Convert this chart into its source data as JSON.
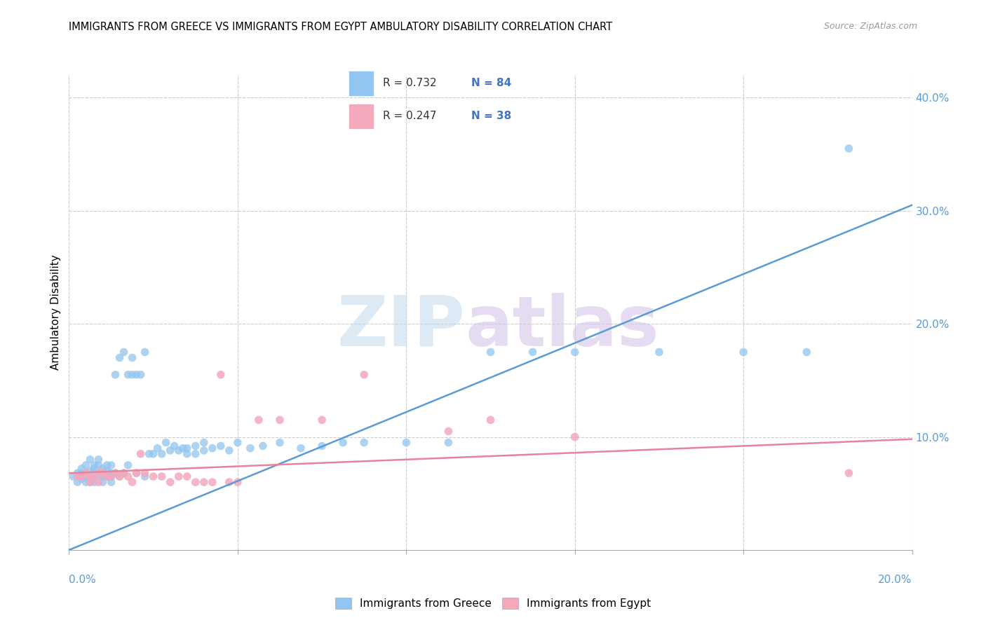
{
  "title": "IMMIGRANTS FROM GREECE VS IMMIGRANTS FROM EGYPT AMBULATORY DISABILITY CORRELATION CHART",
  "source": "Source: ZipAtlas.com",
  "ylabel": "Ambulatory Disability",
  "xlim": [
    0.0,
    0.2
  ],
  "ylim": [
    0.0,
    0.42
  ],
  "greece_R": 0.732,
  "greece_N": 84,
  "egypt_R": 0.247,
  "egypt_N": 38,
  "greece_color": "#92C5F0",
  "egypt_color": "#F4A8BC",
  "greece_line_color": "#5B9BD5",
  "egypt_line_color": "#E8839D",
  "N_color": "#4472C4",
  "R_color": "#333333",
  "background_color": "#FFFFFF",
  "greece_line_x0": 0.0,
  "greece_line_y0": 0.0,
  "greece_line_x1": 0.2,
  "greece_line_y1": 0.305,
  "egypt_line_x0": 0.0,
  "egypt_line_y0": 0.068,
  "egypt_line_x1": 0.2,
  "egypt_line_y1": 0.098,
  "greece_scatter_x": [
    0.001,
    0.002,
    0.002,
    0.003,
    0.003,
    0.003,
    0.004,
    0.004,
    0.004,
    0.004,
    0.005,
    0.005,
    0.005,
    0.005,
    0.006,
    0.006,
    0.006,
    0.006,
    0.006,
    0.007,
    0.007,
    0.007,
    0.007,
    0.008,
    0.008,
    0.008,
    0.008,
    0.009,
    0.009,
    0.009,
    0.01,
    0.01,
    0.01,
    0.01,
    0.011,
    0.011,
    0.012,
    0.012,
    0.013,
    0.013,
    0.014,
    0.014,
    0.015,
    0.015,
    0.016,
    0.016,
    0.017,
    0.018,
    0.019,
    0.02,
    0.021,
    0.022,
    0.023,
    0.024,
    0.025,
    0.026,
    0.027,
    0.028,
    0.03,
    0.032,
    0.034,
    0.036,
    0.038,
    0.04,
    0.043,
    0.046,
    0.05,
    0.055,
    0.06,
    0.065,
    0.07,
    0.08,
    0.09,
    0.1,
    0.11,
    0.12,
    0.14,
    0.16,
    0.175,
    0.185,
    0.03,
    0.028,
    0.032,
    0.018
  ],
  "greece_scatter_y": [
    0.065,
    0.06,
    0.068,
    0.063,
    0.068,
    0.072,
    0.065,
    0.068,
    0.075,
    0.06,
    0.065,
    0.07,
    0.08,
    0.06,
    0.068,
    0.072,
    0.065,
    0.075,
    0.06,
    0.068,
    0.075,
    0.065,
    0.08,
    0.068,
    0.072,
    0.065,
    0.06,
    0.07,
    0.065,
    0.075,
    0.068,
    0.075,
    0.065,
    0.06,
    0.155,
    0.068,
    0.17,
    0.065,
    0.175,
    0.068,
    0.155,
    0.075,
    0.155,
    0.17,
    0.155,
    0.068,
    0.155,
    0.065,
    0.085,
    0.085,
    0.09,
    0.085,
    0.095,
    0.088,
    0.092,
    0.088,
    0.09,
    0.085,
    0.092,
    0.095,
    0.09,
    0.092,
    0.088,
    0.095,
    0.09,
    0.092,
    0.095,
    0.09,
    0.092,
    0.095,
    0.095,
    0.095,
    0.095,
    0.175,
    0.175,
    0.175,
    0.175,
    0.175,
    0.175,
    0.355,
    0.085,
    0.09,
    0.088,
    0.175
  ],
  "egypt_scatter_x": [
    0.002,
    0.003,
    0.004,
    0.005,
    0.005,
    0.006,
    0.007,
    0.007,
    0.008,
    0.009,
    0.01,
    0.011,
    0.012,
    0.013,
    0.014,
    0.015,
    0.016,
    0.017,
    0.018,
    0.02,
    0.022,
    0.024,
    0.026,
    0.028,
    0.03,
    0.032,
    0.034,
    0.036,
    0.038,
    0.04,
    0.045,
    0.05,
    0.06,
    0.07,
    0.09,
    0.1,
    0.12,
    0.185
  ],
  "egypt_scatter_y": [
    0.065,
    0.065,
    0.068,
    0.065,
    0.06,
    0.065,
    0.068,
    0.06,
    0.068,
    0.065,
    0.065,
    0.068,
    0.065,
    0.068,
    0.065,
    0.06,
    0.068,
    0.085,
    0.068,
    0.065,
    0.065,
    0.06,
    0.065,
    0.065,
    0.06,
    0.06,
    0.06,
    0.155,
    0.06,
    0.06,
    0.115,
    0.115,
    0.115,
    0.155,
    0.105,
    0.115,
    0.1,
    0.068
  ]
}
